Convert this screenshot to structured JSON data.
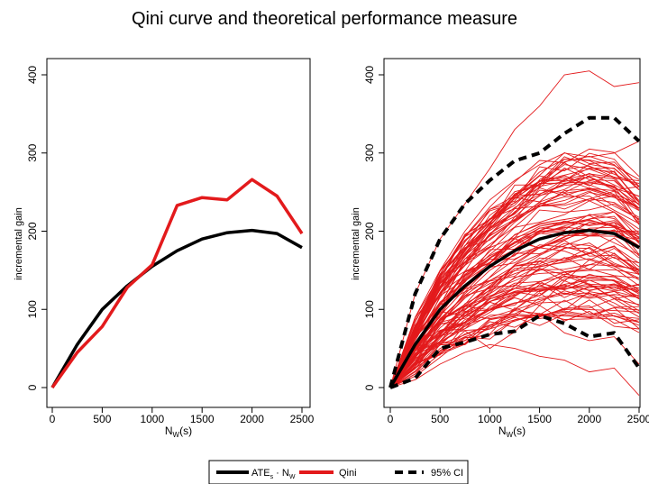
{
  "title": "Qini curve and theoretical performance measure",
  "legend": {
    "entries": [
      {
        "label": "ATE",
        "sub1": "s",
        "mid": " · N",
        "sub2": "W",
        "color": "#000000",
        "dash": false
      },
      {
        "label": "Qini",
        "color": "#e31a1c",
        "dash": false
      },
      {
        "label": "95% CI",
        "color": "#000000",
        "dash": true
      }
    ]
  },
  "chart_data": [
    {
      "type": "line",
      "xlabel_main": "N",
      "xlabel_sub": "W",
      "xlabel_tail": "(s)",
      "ylabel": "incremental gain",
      "xlim": [
        0,
        2500
      ],
      "ylim": [
        0,
        400
      ],
      "xticks": [
        0,
        500,
        1000,
        1500,
        2000,
        2500
      ],
      "yticks": [
        0,
        100,
        200,
        300,
        400
      ],
      "series": [
        {
          "name": "ATE",
          "color": "#000000",
          "x": [
            0,
            250,
            500,
            750,
            1000,
            1250,
            1500,
            1750,
            2000,
            2250,
            2500
          ],
          "values": [
            0,
            55,
            100,
            130,
            155,
            175,
            190,
            198,
            201,
            197,
            179
          ]
        },
        {
          "name": "Qini",
          "color": "#e31a1c",
          "x": [
            0,
            250,
            500,
            750,
            1000,
            1250,
            1500,
            1750,
            2000,
            2250,
            2500
          ],
          "values": [
            0,
            45,
            78,
            128,
            157,
            233,
            243,
            240,
            266,
            245,
            197
          ]
        }
      ]
    },
    {
      "type": "line",
      "xlabel_main": "N",
      "xlabel_sub": "W",
      "xlabel_tail": "(s)",
      "ylabel": "incremental gain",
      "xlim": [
        0,
        2500
      ],
      "ylim": [
        0,
        400
      ],
      "xticks": [
        0,
        500,
        1000,
        1500,
        2000,
        2500
      ],
      "yticks": [
        0,
        100,
        200,
        300,
        400
      ],
      "simulated_qini": {
        "color": "#e31a1c",
        "count": 100,
        "x": [
          0,
          250,
          500,
          750,
          1000,
          1250,
          1500,
          1750,
          2000,
          2250,
          2500
        ],
        "representative_paths": [
          [
            0,
            120,
            190,
            235,
            280,
            330,
            360,
            400,
            405,
            385,
            390
          ],
          [
            0,
            90,
            150,
            200,
            240,
            265,
            285,
            300,
            295,
            300,
            315
          ],
          [
            0,
            60,
            115,
            160,
            195,
            225,
            245,
            260,
            270,
            255,
            245
          ],
          [
            0,
            50,
            100,
            140,
            170,
            195,
            210,
            215,
            220,
            205,
            190
          ],
          [
            0,
            40,
            85,
            120,
            150,
            170,
            180,
            190,
            200,
            185,
            170
          ],
          [
            0,
            30,
            65,
            95,
            120,
            140,
            155,
            160,
            165,
            155,
            140
          ],
          [
            0,
            20,
            50,
            65,
            75,
            85,
            95,
            70,
            60,
            65,
            30
          ],
          [
            0,
            10,
            30,
            45,
            55,
            50,
            40,
            35,
            20,
            25,
            -10
          ]
        ]
      },
      "series": [
        {
          "name": "ATE",
          "color": "#000000",
          "x": [
            0,
            250,
            500,
            750,
            1000,
            1250,
            1500,
            1750,
            2000,
            2250,
            2500
          ],
          "values": [
            0,
            55,
            100,
            130,
            155,
            175,
            190,
            198,
            201,
            197,
            179
          ]
        },
        {
          "name": "CI upper",
          "color": "#000000",
          "dash": true,
          "x": [
            0,
            250,
            500,
            750,
            1000,
            1250,
            1500,
            1750,
            2000,
            2250,
            2500
          ],
          "values": [
            0,
            120,
            190,
            235,
            265,
            290,
            300,
            325,
            345,
            345,
            315
          ]
        },
        {
          "name": "CI lower",
          "color": "#000000",
          "dash": true,
          "x": [
            0,
            250,
            500,
            750,
            1000,
            1250,
            1500,
            1750,
            2000,
            2250,
            2500
          ],
          "values": [
            0,
            12,
            50,
            58,
            68,
            72,
            92,
            82,
            65,
            70,
            25
          ]
        }
      ]
    }
  ]
}
